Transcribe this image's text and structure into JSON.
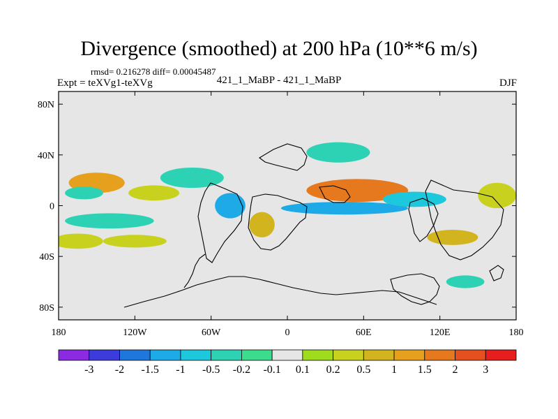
{
  "chart_data": {
    "type": "heatmap",
    "title": "Divergence (smoothed) at 200 hPa (10**6 m/s)",
    "stats": "rmsd= 0.216278 diff= 0.00045487",
    "expt": "Expt = teXVg1-teXVg",
    "cases": "421_1_MaBP - 421_1_MaBP",
    "season": "DJF",
    "x_range": [
      -180,
      180
    ],
    "y_range": [
      -90,
      90
    ],
    "x_ticks": [
      {
        "value": -180,
        "label": "180"
      },
      {
        "value": -120,
        "label": "120W"
      },
      {
        "value": -60,
        "label": "60W"
      },
      {
        "value": 0,
        "label": "0"
      },
      {
        "value": 60,
        "label": "60E"
      },
      {
        "value": 120,
        "label": "120E"
      },
      {
        "value": 180,
        "label": "180"
      }
    ],
    "y_ticks": [
      {
        "value": 80,
        "label": "80N"
      },
      {
        "value": 40,
        "label": "40N"
      },
      {
        "value": 0,
        "label": "0"
      },
      {
        "value": -40,
        "label": "40S"
      },
      {
        "value": -80,
        "label": "80S"
      }
    ],
    "colorbar": {
      "colors": [
        "#8a2be2",
        "#3c3cdc",
        "#1e78dc",
        "#1eaae6",
        "#1ec8dc",
        "#2dd2b4",
        "#3cdc8c",
        "#e6e6e6",
        "#a0dc1e",
        "#c8d21e",
        "#d2b41e",
        "#e6a01e",
        "#e6781e",
        "#e6501e",
        "#e61e1e"
      ],
      "labels": [
        "-3",
        "-2",
        "-1.5",
        "-1",
        "-0.5",
        "-0.2",
        "-0.1",
        "0.1",
        "0.2",
        "0.5",
        "1",
        "1.5",
        "2",
        "3"
      ]
    },
    "anomaly_regions": [
      {
        "lon": -150,
        "lat": 18,
        "rlon": 22,
        "rlat": 8,
        "bin": 11,
        "level": 0.7
      },
      {
        "lon": -105,
        "lat": 10,
        "rlon": 20,
        "rlat": 6,
        "bin": 9,
        "level": 0.5
      },
      {
        "lon": -160,
        "lat": 10,
        "rlon": 15,
        "rlat": 5,
        "bin": 5,
        "level": -0.3
      },
      {
        "lon": -140,
        "lat": -12,
        "rlon": 35,
        "rlat": 6,
        "bin": 5,
        "level": -0.3
      },
      {
        "lon": -165,
        "lat": -28,
        "rlon": 20,
        "rlat": 6,
        "bin": 9,
        "level": 0.5
      },
      {
        "lon": -120,
        "lat": -28,
        "rlon": 25,
        "rlat": 5,
        "bin": 9,
        "level": 0.5
      },
      {
        "lon": -75,
        "lat": 22,
        "rlon": 25,
        "rlat": 8,
        "bin": 5,
        "level": -0.3
      },
      {
        "lon": -45,
        "lat": 0,
        "rlon": 12,
        "rlat": 10,
        "bin": 3,
        "level": -0.7
      },
      {
        "lon": -20,
        "lat": -15,
        "rlon": 10,
        "rlat": 10,
        "bin": 10,
        "level": 0.8
      },
      {
        "lon": 55,
        "lat": 12,
        "rlon": 40,
        "rlat": 9,
        "bin": 12,
        "level": 1.2
      },
      {
        "lon": 45,
        "lat": -2,
        "rlon": 50,
        "rlat": 5,
        "bin": 3,
        "level": -0.7
      },
      {
        "lon": 40,
        "lat": 42,
        "rlon": 25,
        "rlat": 8,
        "bin": 5,
        "level": -0.3
      },
      {
        "lon": 100,
        "lat": 5,
        "rlon": 25,
        "rlat": 6,
        "bin": 4,
        "level": -0.5
      },
      {
        "lon": 130,
        "lat": -25,
        "rlon": 20,
        "rlat": 6,
        "bin": 10,
        "level": 0.8
      },
      {
        "lon": 165,
        "lat": 8,
        "rlon": 15,
        "rlat": 10,
        "bin": 9,
        "level": 0.5
      },
      {
        "lon": 140,
        "lat": -60,
        "rlon": 15,
        "rlat": 5,
        "bin": 5,
        "level": -0.3
      }
    ],
    "grid": false
  }
}
